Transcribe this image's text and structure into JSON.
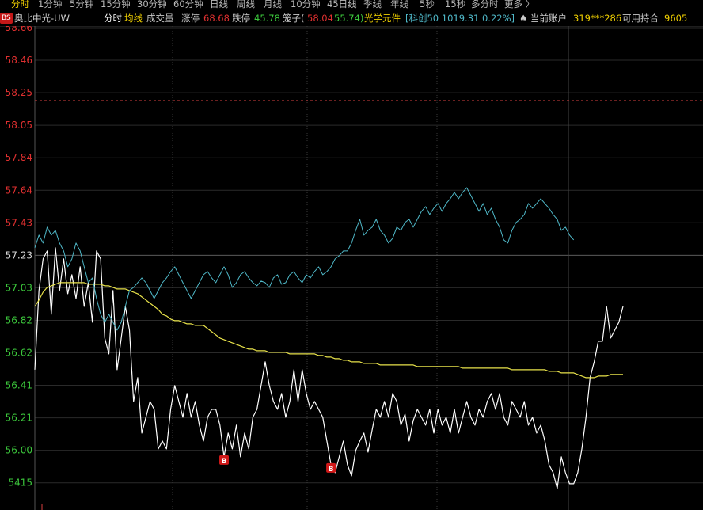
{
  "period_tabs": {
    "items": [
      {
        "label": "分时",
        "active": true
      },
      {
        "label": "1分钟",
        "active": false
      },
      {
        "label": "5分钟",
        "active": false
      },
      {
        "label": "15分钟",
        "active": false
      },
      {
        "label": "30分钟",
        "active": false
      },
      {
        "label": "60分钟",
        "active": false
      },
      {
        "label": "日线",
        "active": false
      },
      {
        "label": "周线",
        "active": false
      },
      {
        "label": "月线",
        "active": false
      },
      {
        "label": "10分钟",
        "active": false
      },
      {
        "label": "45日线",
        "active": false
      },
      {
        "label": "季线",
        "active": false
      },
      {
        "label": "年线",
        "active": false
      },
      {
        "label": "5秒",
        "active": false
      },
      {
        "label": "15秒",
        "active": false
      },
      {
        "label": "多分时",
        "active": false
      },
      {
        "label": "更多 〉",
        "active": false
      }
    ]
  },
  "info_bar": {
    "badge": "BS",
    "stock_name": "奥比中光-UW",
    "view_label": "分时",
    "avg_line_label": "均线",
    "volume_label": "成交量",
    "limit_up_label": "涨停",
    "limit_up_value": "68.68",
    "limit_down_label": "跌停",
    "limit_down_value": "45.78",
    "cage_label": "笼子(",
    "cage_high": "58.04",
    "cage_low": "55.74)",
    "sector": "光学元件",
    "index_info": "[科创50 1019.31 0.22%]",
    "account_label": "当前账户",
    "account_value": "319***286",
    "holdings_label": "可用持合",
    "holdings_value": "9605"
  },
  "colors": {
    "background": "#000000",
    "price_line": "#ffffff",
    "avg_line": "#e8e24a",
    "index_line": "#4fb8c8",
    "price_label_up": "#e03030",
    "price_label_down": "#3cc83c",
    "grid_line": "#2a2a2a",
    "prev_close_line": "#d84040",
    "tab_active": "#f0d000",
    "buy_marker": "#d01818"
  },
  "chart_data": {
    "type": "line",
    "title": "",
    "y_axis_labels": [
      "58.66",
      "58.46",
      "58.25",
      "58.05",
      "57.84",
      "57.64",
      "57.43",
      "57.23",
      "57.03",
      "56.82",
      "56.62",
      "56.41",
      "56.21",
      "56.00",
      "5415"
    ],
    "y_axis_label_color": [
      "up",
      "up",
      "up",
      "up",
      "up",
      "up",
      "up",
      "flat",
      "down",
      "down",
      "down",
      "down",
      "down",
      "down",
      "down"
    ],
    "ylim": [
      55.79,
      58.66
    ],
    "reference_line": 58.2,
    "series": [
      {
        "values": [
          56.5,
          57.0,
          57.2,
          57.25,
          56.85,
          57.27,
          57.0,
          57.2,
          56.98,
          57.1,
          56.95,
          57.15,
          56.9,
          57.05,
          56.8,
          57.25,
          57.2,
          56.7,
          56.6,
          57.0,
          56.5,
          56.7,
          56.9,
          56.75,
          56.3,
          56.45,
          56.1,
          56.2,
          56.3,
          56.25,
          56.0,
          56.05,
          56.0,
          56.25,
          56.4,
          56.3,
          56.2,
          56.35,
          56.2,
          56.3,
          56.15,
          56.05,
          56.2,
          56.25,
          56.25,
          56.15,
          55.95,
          56.1,
          56.0,
          56.15,
          55.95,
          56.1,
          56.0,
          56.2,
          56.25,
          56.4,
          56.55,
          56.4,
          56.3,
          56.25,
          56.35,
          56.2,
          56.3,
          56.5,
          56.3,
          56.5,
          56.35,
          56.25,
          56.3,
          56.25,
          56.2,
          56.05,
          55.9,
          55.85,
          55.95,
          56.05,
          55.9,
          55.83,
          55.99,
          56.05,
          56.1,
          55.98,
          56.12,
          56.25,
          56.2,
          56.3,
          56.2,
          56.35,
          56.3,
          56.15,
          56.22,
          56.05,
          56.18,
          56.25,
          56.2,
          56.15,
          56.25,
          56.1,
          56.25,
          56.15,
          56.2,
          56.1,
          56.25,
          56.1,
          56.2,
          56.3,
          56.2,
          56.15,
          56.25,
          56.2,
          56.3,
          56.35,
          56.25,
          56.35,
          56.2,
          56.15,
          56.3,
          56.25,
          56.2,
          56.3,
          56.15,
          56.2,
          56.1,
          56.15,
          56.05,
          55.9,
          55.85,
          55.75,
          55.95,
          55.85,
          55.78,
          55.78,
          55.85,
          56.0,
          56.2,
          56.45,
          56.55,
          56.68,
          56.68,
          56.9,
          56.7,
          56.75,
          56.8,
          56.9
        ]
      },
      {
        "values": [
          56.9,
          56.94,
          56.99,
          57.02,
          57.03,
          57.04,
          57.05,
          57.05,
          57.05,
          57.05,
          57.05,
          57.05,
          57.05,
          57.04,
          57.04,
          57.04,
          57.04,
          57.03,
          57.03,
          57.02,
          57.01,
          57.01,
          57.01,
          57.0,
          56.99,
          56.98,
          56.96,
          56.94,
          56.92,
          56.9,
          56.88,
          56.85,
          56.84,
          56.82,
          56.81,
          56.81,
          56.8,
          56.79,
          56.79,
          56.78,
          56.78,
          56.78,
          56.76,
          56.74,
          56.72,
          56.7,
          56.69,
          56.68,
          56.67,
          56.66,
          56.65,
          56.64,
          56.63,
          56.63,
          56.62,
          56.62,
          56.62,
          56.61,
          56.61,
          56.61,
          56.61,
          56.61,
          56.6,
          56.6,
          56.6,
          56.6,
          56.6,
          56.6,
          56.6,
          56.59,
          56.59,
          56.58,
          56.58,
          56.57,
          56.57,
          56.56,
          56.56,
          56.55,
          56.55,
          56.55,
          56.54,
          56.54,
          56.54,
          56.54,
          56.53,
          56.53,
          56.53,
          56.53,
          56.53,
          56.53,
          56.53,
          56.53,
          56.53,
          56.52,
          56.52,
          56.52,
          56.52,
          56.52,
          56.52,
          56.52,
          56.52,
          56.52,
          56.52,
          56.52,
          56.51,
          56.51,
          56.51,
          56.51,
          56.51,
          56.51,
          56.51,
          56.51,
          56.51,
          56.51,
          56.51,
          56.51,
          56.5,
          56.5,
          56.5,
          56.5,
          56.5,
          56.5,
          56.5,
          56.5,
          56.5,
          56.49,
          56.49,
          56.49,
          56.48,
          56.48,
          56.48,
          56.48,
          56.47,
          56.46,
          56.45,
          56.45,
          56.45,
          56.46,
          56.46,
          56.46,
          56.47,
          56.47,
          56.47,
          56.47
        ]
      },
      {
        "values": [
          57.27,
          57.35,
          57.3,
          57.4,
          57.35,
          57.38,
          57.3,
          57.25,
          57.15,
          57.2,
          57.3,
          57.25,
          57.15,
          57.05,
          57.08,
          56.95,
          56.85,
          56.8,
          56.85,
          56.8,
          56.75,
          56.8,
          56.9,
          57.0,
          57.02,
          57.05,
          57.08,
          57.05,
          57.0,
          56.95,
          57.0,
          57.05,
          57.08,
          57.12,
          57.15,
          57.1,
          57.05,
          57.0,
          56.95,
          57.0,
          57.05,
          57.1,
          57.12,
          57.08,
          57.05,
          57.1,
          57.15,
          57.1,
          57.02,
          57.05,
          57.1,
          57.12,
          57.08,
          57.05,
          57.03,
          57.06,
          57.05,
          57.02,
          57.08,
          57.1,
          57.04,
          57.05,
          57.1,
          57.12,
          57.08,
          57.05,
          57.1,
          57.08,
          57.12,
          57.15,
          57.1,
          57.12,
          57.15,
          57.2,
          57.22,
          57.25,
          57.25,
          57.3,
          57.38,
          57.45,
          57.35,
          57.38,
          57.4,
          57.45,
          57.38,
          57.35,
          57.3,
          57.33,
          57.4,
          57.38,
          57.43,
          57.45,
          57.4,
          57.45,
          57.5,
          57.53,
          57.48,
          57.52,
          57.55,
          57.5,
          57.55,
          57.58,
          57.62,
          57.58,
          57.62,
          57.65,
          57.6,
          57.55,
          57.5,
          57.55,
          57.48,
          57.52,
          57.45,
          57.4,
          57.32,
          57.3,
          57.38,
          57.43,
          57.45,
          57.48,
          57.55,
          57.52,
          57.55,
          57.58,
          57.55,
          57.52,
          57.48,
          57.45,
          57.38,
          57.4,
          57.35,
          57.32
        ]
      }
    ],
    "buy_markers": [
      {
        "label": "B",
        "index": 46,
        "value": 55.95
      },
      {
        "label": "B",
        "index": 72,
        "value": 55.9
      }
    ]
  }
}
